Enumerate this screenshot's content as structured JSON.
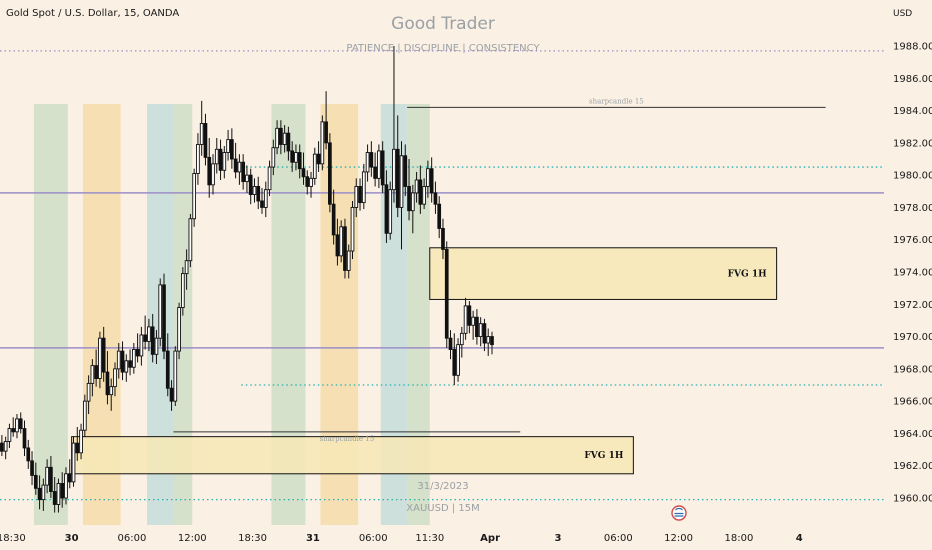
{
  "header": {
    "symbol_title": "Gold Spot / U.S. Dollar, 15, OANDA",
    "watermark_title": "Good Trader",
    "watermark_subtitle": "PATIENCE  |  DISCIPLINE | CONSISTENCY",
    "watermark_date": "31/3/2023",
    "watermark_symbol": "XAUUSD | 15M",
    "currency": "USD"
  },
  "colors": {
    "background": "#fbf0e4",
    "candle": "#111111",
    "purple_line": "#9b8ec8",
    "teal_dotted": "#22b3b3",
    "fvg_fill": "#f7e8b6",
    "green_band": "#b7d5b5",
    "orange_band": "#f3d38a",
    "blue_band": "#a9d4d4"
  },
  "chart_data": {
    "type": "candlestick",
    "y_axis": {
      "min": 1959,
      "max": 1989,
      "ticks": [
        1960,
        1962,
        1964,
        1966,
        1968,
        1970,
        1972,
        1974,
        1976,
        1978,
        1980,
        1982,
        1984,
        1986,
        1988
      ],
      "labels": [
        "1960.000",
        "1962.000",
        "1964.000",
        "1966.000",
        "1968.000",
        "1970.000",
        "1972.000",
        "1974.000",
        "1976.000",
        "1978.000",
        "1980.000",
        "1982.000",
        "1984.000",
        "1986.000",
        "1988.000"
      ],
      "currency": "USD"
    },
    "x_axis": {
      "ticks": [
        {
          "label": "18:30",
          "bar": 3
        },
        {
          "label": "30",
          "bar": 19
        },
        {
          "label": "06:00",
          "bar": 35
        },
        {
          "label": "12:00",
          "bar": 51
        },
        {
          "label": "18:30",
          "bar": 67
        },
        {
          "label": "31",
          "bar": 83
        },
        {
          "label": "06:00",
          "bar": 99
        },
        {
          "label": "11:30",
          "bar": 114
        },
        {
          "label": "Apr",
          "bar": 130
        },
        {
          "label": "3",
          "bar": 148
        },
        {
          "label": "06:00",
          "bar": 164
        },
        {
          "label": "12:00",
          "bar": 180
        },
        {
          "label": "18:00",
          "bar": 196
        },
        {
          "label": "4",
          "bar": 212
        }
      ],
      "bold_labels": [
        "30",
        "31",
        "Apr",
        "3",
        "4"
      ]
    },
    "levels": [
      {
        "kind": "dotted",
        "color": "purple",
        "price": 1987.7,
        "from_bar": 0
      },
      {
        "kind": "dotted",
        "color": "teal",
        "price": 1980.5,
        "from_bar": 64
      },
      {
        "kind": "solid",
        "color": "purple",
        "price": 1978.9,
        "from_bar": 0
      },
      {
        "kind": "solid",
        "color": "purple",
        "price": 1969.3,
        "from_bar": 0
      },
      {
        "kind": "dotted",
        "color": "teal",
        "price": 1967.0,
        "from_bar": 64
      },
      {
        "kind": "dotted",
        "color": "teal",
        "price": 1959.9,
        "from_bar": 0
      }
    ],
    "zones": [
      {
        "label": "FVG 1H",
        "from_bar": 114,
        "to_bar": 206,
        "top": 1975.5,
        "bottom": 1972.3
      },
      {
        "label": "FVG 1H",
        "from_bar": 19,
        "to_bar": 168,
        "top": 1963.8,
        "bottom": 1961.5
      }
    ],
    "annotations": [
      {
        "label": "sharpcandle 15",
        "from_bar": 108,
        "to_bar": 219,
        "price": 1984.2
      },
      {
        "label": "sharpcandle 15",
        "from_bar": 46,
        "to_bar": 138,
        "price": 1964.1
      }
    ],
    "session_bands": [
      {
        "color": "green",
        "from_bar": 9,
        "to_bar": 18
      },
      {
        "color": "orange",
        "from_bar": 22,
        "to_bar": 32
      },
      {
        "color": "blue",
        "from_bar": 39,
        "to_bar": 46
      },
      {
        "color": "green",
        "from_bar": 46,
        "to_bar": 51
      },
      {
        "color": "green",
        "from_bar": 72,
        "to_bar": 81
      },
      {
        "color": "orange",
        "from_bar": 85,
        "to_bar": 95
      },
      {
        "color": "blue",
        "from_bar": 101,
        "to_bar": 108
      },
      {
        "color": "green",
        "from_bar": 108,
        "to_bar": 114
      }
    ],
    "candles": [
      [
        1963.4,
        1963.9,
        1962.6,
        1962.9
      ],
      [
        1962.9,
        1963.8,
        1962.4,
        1963.5
      ],
      [
        1963.5,
        1964.6,
        1963.1,
        1964.3
      ],
      [
        1964.3,
        1965.0,
        1963.8,
        1964.1
      ],
      [
        1964.1,
        1965.2,
        1963.7,
        1964.9
      ],
      [
        1964.9,
        1965.3,
        1964.0,
        1964.3
      ],
      [
        1964.3,
        1964.8,
        1962.6,
        1963.1
      ],
      [
        1963.1,
        1963.6,
        1961.8,
        1962.3
      ],
      [
        1962.3,
        1962.9,
        1960.8,
        1961.4
      ],
      [
        1961.4,
        1962.2,
        1960.2,
        1960.6
      ],
      [
        1960.6,
        1961.4,
        1959.3,
        1959.9
      ],
      [
        1959.9,
        1961.2,
        1959.2,
        1960.8
      ],
      [
        1960.8,
        1962.4,
        1960.3,
        1961.9
      ],
      [
        1961.9,
        1962.6,
        1960.0,
        1960.4
      ],
      [
        1960.4,
        1961.3,
        1959.1,
        1959.6
      ],
      [
        1959.6,
        1961.2,
        1959.1,
        1960.9
      ],
      [
        1960.9,
        1961.6,
        1959.4,
        1960.0
      ],
      [
        1960.0,
        1961.9,
        1959.6,
        1961.5
      ],
      [
        1961.5,
        1962.4,
        1960.6,
        1961.0
      ],
      [
        1961.0,
        1963.8,
        1960.7,
        1963.4
      ],
      [
        1963.4,
        1964.4,
        1962.3,
        1962.8
      ],
      [
        1962.8,
        1964.6,
        1962.4,
        1964.2
      ],
      [
        1964.2,
        1966.4,
        1963.8,
        1966.0
      ],
      [
        1966.0,
        1967.6,
        1965.2,
        1967.1
      ],
      [
        1967.1,
        1968.6,
        1966.3,
        1968.2
      ],
      [
        1968.2,
        1969.2,
        1966.9,
        1967.4
      ],
      [
        1967.4,
        1970.3,
        1966.8,
        1969.9
      ],
      [
        1969.9,
        1970.6,
        1967.2,
        1967.8
      ],
      [
        1967.8,
        1969.1,
        1965.8,
        1966.4
      ],
      [
        1966.4,
        1967.4,
        1965.4,
        1966.9
      ],
      [
        1966.9,
        1968.4,
        1966.3,
        1968.0
      ],
      [
        1968.0,
        1969.6,
        1967.4,
        1969.1
      ],
      [
        1969.1,
        1969.7,
        1967.3,
        1967.8
      ],
      [
        1967.8,
        1968.9,
        1967.2,
        1968.5
      ],
      [
        1968.5,
        1969.2,
        1967.6,
        1968.1
      ],
      [
        1968.1,
        1969.6,
        1967.7,
        1969.2
      ],
      [
        1969.2,
        1970.2,
        1968.4,
        1968.8
      ],
      [
        1968.8,
        1970.6,
        1968.2,
        1970.1
      ],
      [
        1970.1,
        1971.3,
        1969.2,
        1969.7
      ],
      [
        1969.7,
        1971.1,
        1969.1,
        1970.6
      ],
      [
        1970.6,
        1971.4,
        1968.4,
        1968.9
      ],
      [
        1968.9,
        1970.4,
        1968.3,
        1969.9
      ],
      [
        1969.9,
        1973.6,
        1969.4,
        1973.2
      ],
      [
        1973.2,
        1973.9,
        1968.6,
        1969.1
      ],
      [
        1969.1,
        1970.2,
        1966.3,
        1966.8
      ],
      [
        1966.8,
        1967.3,
        1965.4,
        1966.0
      ],
      [
        1966.0,
        1969.4,
        1965.7,
        1969.1
      ],
      [
        1969.1,
        1972.1,
        1968.6,
        1971.8
      ],
      [
        1971.8,
        1974.3,
        1971.3,
        1973.9
      ],
      [
        1973.9,
        1975.4,
        1972.9,
        1974.7
      ],
      [
        1974.7,
        1977.6,
        1974.3,
        1977.3
      ],
      [
        1977.3,
        1980.4,
        1976.8,
        1980.1
      ],
      [
        1980.1,
        1982.6,
        1979.4,
        1981.9
      ],
      [
        1981.9,
        1984.6,
        1981.2,
        1983.2
      ],
      [
        1983.2,
        1983.8,
        1980.6,
        1981.1
      ],
      [
        1981.1,
        1982.3,
        1978.6,
        1979.4
      ],
      [
        1979.4,
        1981.3,
        1978.8,
        1980.7
      ],
      [
        1980.7,
        1982.3,
        1980.1,
        1981.6
      ],
      [
        1981.6,
        1982.2,
        1979.7,
        1980.3
      ],
      [
        1980.3,
        1981.8,
        1979.8,
        1981.4
      ],
      [
        1981.4,
        1982.8,
        1980.9,
        1982.2
      ],
      [
        1982.2,
        1982.9,
        1980.4,
        1981.0
      ],
      [
        1981.0,
        1982.0,
        1979.8,
        1980.2
      ],
      [
        1980.2,
        1981.3,
        1979.4,
        1980.8
      ],
      [
        1980.8,
        1981.3,
        1979.1,
        1979.6
      ],
      [
        1979.6,
        1980.6,
        1978.9,
        1980.0
      ],
      [
        1980.0,
        1980.4,
        1978.2,
        1978.8
      ],
      [
        1978.8,
        1979.8,
        1978.3,
        1979.3
      ],
      [
        1979.3,
        1979.9,
        1977.9,
        1978.4
      ],
      [
        1978.4,
        1979.2,
        1977.6,
        1978.0
      ],
      [
        1978.0,
        1979.6,
        1977.4,
        1979.1
      ],
      [
        1979.1,
        1980.9,
        1978.7,
        1980.5
      ],
      [
        1980.5,
        1982.2,
        1980.0,
        1981.7
      ],
      [
        1981.7,
        1983.4,
        1981.3,
        1982.9
      ],
      [
        1982.9,
        1983.4,
        1981.3,
        1981.9
      ],
      [
        1981.9,
        1983.1,
        1981.4,
        1982.6
      ],
      [
        1982.6,
        1983.0,
        1980.9,
        1981.5
      ],
      [
        1981.5,
        1982.1,
        1980.2,
        1980.8
      ],
      [
        1980.8,
        1981.9,
        1980.3,
        1981.4
      ],
      [
        1981.4,
        1981.9,
        1979.8,
        1980.4
      ],
      [
        1980.4,
        1981.4,
        1979.4,
        1979.9
      ],
      [
        1979.9,
        1980.3,
        1978.8,
        1979.3
      ],
      [
        1979.3,
        1980.2,
        1978.6,
        1979.8
      ],
      [
        1979.8,
        1981.7,
        1979.4,
        1981.3
      ],
      [
        1981.3,
        1982.1,
        1980.2,
        1980.7
      ],
      [
        1980.7,
        1983.7,
        1980.3,
        1983.3
      ],
      [
        1983.3,
        1985.2,
        1981.6,
        1982.0
      ],
      [
        1982.0,
        1982.6,
        1977.7,
        1978.2
      ],
      [
        1978.2,
        1979.1,
        1975.7,
        1976.3
      ],
      [
        1976.3,
        1977.3,
        1974.4,
        1975.0
      ],
      [
        1975.0,
        1977.2,
        1974.6,
        1976.8
      ],
      [
        1976.8,
        1977.3,
        1973.6,
        1974.1
      ],
      [
        1974.1,
        1975.7,
        1973.6,
        1975.3
      ],
      [
        1975.3,
        1978.4,
        1974.8,
        1978.0
      ],
      [
        1978.0,
        1979.8,
        1977.4,
        1979.3
      ],
      [
        1979.3,
        1979.8,
        1977.8,
        1978.3
      ],
      [
        1978.3,
        1980.7,
        1977.9,
        1980.2
      ],
      [
        1980.2,
        1981.9,
        1979.6,
        1981.4
      ],
      [
        1981.4,
        1982.1,
        1979.9,
        1980.5
      ],
      [
        1980.5,
        1981.4,
        1979.3,
        1979.8
      ],
      [
        1979.8,
        1981.9,
        1979.2,
        1981.5
      ],
      [
        1981.5,
        1982.1,
        1978.9,
        1979.4
      ],
      [
        1979.4,
        1980.3,
        1975.8,
        1976.4
      ],
      [
        1976.4,
        1979.6,
        1976.0,
        1979.1
      ],
      [
        1979.1,
        1988.0,
        1978.3,
        1981.6
      ],
      [
        1981.6,
        1983.7,
        1977.4,
        1978.0
      ],
      [
        1978.0,
        1982.1,
        1975.4,
        1981.2
      ],
      [
        1981.2,
        1981.9,
        1978.7,
        1979.3
      ],
      [
        1979.3,
        1981.0,
        1977.2,
        1977.8
      ],
      [
        1977.8,
        1979.4,
        1976.4,
        1978.9
      ],
      [
        1978.9,
        1980.2,
        1978.3,
        1979.7
      ],
      [
        1979.7,
        1980.6,
        1977.6,
        1978.2
      ],
      [
        1978.2,
        1979.8,
        1977.9,
        1979.3
      ],
      [
        1979.3,
        1980.9,
        1978.6,
        1980.4
      ],
      [
        1980.4,
        1981.1,
        1978.3,
        1978.9
      ],
      [
        1978.9,
        1979.6,
        1977.6,
        1978.2
      ],
      [
        1978.2,
        1978.7,
        1976.1,
        1976.7
      ],
      [
        1976.7,
        1977.3,
        1974.8,
        1975.4
      ],
      [
        1975.4,
        1975.9,
        1969.3,
        1969.9
      ],
      [
        1969.9,
        1970.4,
        1968.6,
        1969.2
      ],
      [
        1969.2,
        1970.2,
        1967.0,
        1967.6
      ],
      [
        1967.6,
        1969.9,
        1967.2,
        1969.5
      ],
      [
        1969.5,
        1970.6,
        1968.7,
        1970.2
      ],
      [
        1970.2,
        1972.4,
        1969.8,
        1971.9
      ],
      [
        1971.9,
        1972.2,
        1970.2,
        1970.7
      ],
      [
        1970.7,
        1971.6,
        1969.8,
        1971.2
      ],
      [
        1971.2,
        1971.7,
        1969.5,
        1970.0
      ],
      [
        1970.0,
        1971.2,
        1969.4,
        1970.8
      ],
      [
        1970.8,
        1971.1,
        1969.1,
        1969.6
      ],
      [
        1969.6,
        1970.5,
        1968.8,
        1970.0
      ],
      [
        1970.0,
        1970.3,
        1968.9,
        1969.5
      ]
    ]
  }
}
